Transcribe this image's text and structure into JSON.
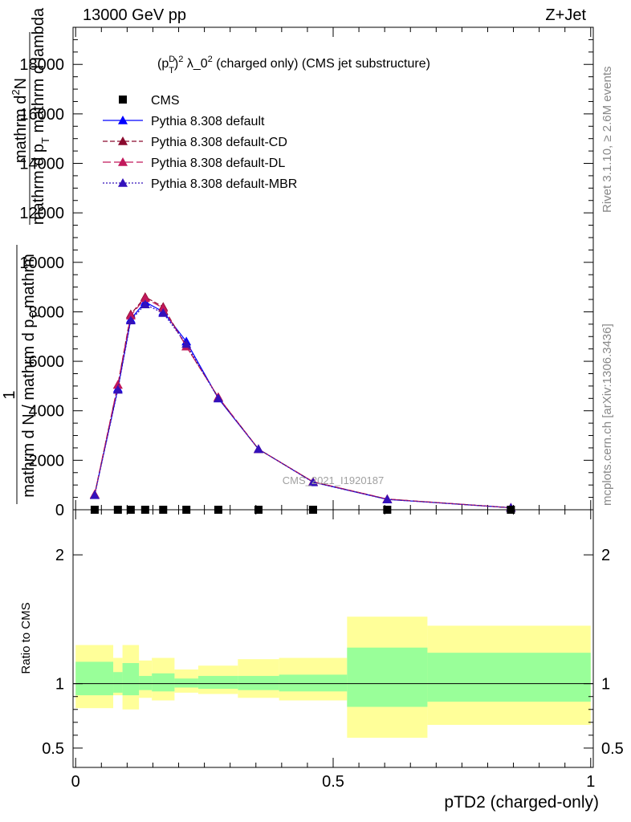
{
  "header": {
    "left": "13000 GeV pp",
    "right": "Z+Jet"
  },
  "side_labels": {
    "rivet": "Rivet 3.1.10, ≥ 2.6M events",
    "source": "mcplots.cern.ch [arXiv:1306.3436]"
  },
  "watermark": "CMS_2021_I1920187",
  "chart_data": [
    {
      "type": "line",
      "panel": "main",
      "title_parts": {
        "base": "(p",
        "sup1": "D",
        "sub1": "T",
        "mid": ")",
        "sup2": "2",
        "tail1": " λ_0",
        "sup3": "2",
        "tail2": " (charged only) (CMS jet substructure)"
      },
      "ylabel": {
        "numerator_prefix": "1",
        "frac_top": "mathrm d",
        "frac_top_sup": "2",
        "frac_top_end": "N",
        "frac_bottom": "mathrm d p",
        "frac_bottom_sub": "T",
        "frac_bottom_end": " mathrm d lambda",
        "outer": "mathrm d N / mathrm d p",
        "outer_sub": "T",
        "outer_end": " mathrm"
      },
      "ylim": [
        0,
        19500
      ],
      "yticks": [
        0,
        2000,
        4000,
        6000,
        8000,
        10000,
        12000,
        14000,
        16000,
        18000
      ],
      "ytick_labels": [
        "0",
        "2000",
        "4000",
        "6000",
        "8000",
        "10000",
        "12000",
        "14000",
        "16000",
        "18000"
      ],
      "legend": [
        {
          "name": "CMS",
          "color": "#000000",
          "marker": "square",
          "dash": ""
        },
        {
          "name": "Pythia 8.308 default",
          "color": "#0000ff",
          "marker": "triangle",
          "dash": ""
        },
        {
          "name": "Pythia 8.308 default-CD",
          "color": "#8b0a2e",
          "marker": "triangle",
          "dash": "6,3"
        },
        {
          "name": "Pythia 8.308 default-DL",
          "color": "#c2185b",
          "marker": "triangle",
          "dash": "10,4"
        },
        {
          "name": "Pythia 8.308 default-MBR",
          "color": "#3311bb",
          "marker": "triangle",
          "dash": "2,2"
        }
      ],
      "data_x": [
        0.037,
        0.082,
        0.107,
        0.135,
        0.17,
        0.215,
        0.277,
        0.355,
        0.461,
        0.605,
        0.845
      ],
      "data_y": [
        0,
        0,
        0,
        0,
        0,
        0,
        0,
        0,
        0,
        0,
        0
      ],
      "series": [
        {
          "name": "Pythia 8.308 default",
          "values": [
            600,
            4900,
            7700,
            8400,
            8000,
            6800,
            4500,
            2450,
            1120,
            420,
            80
          ]
        },
        {
          "name": "Pythia 8.308 default-CD",
          "values": [
            620,
            5050,
            7900,
            8600,
            8200,
            6600,
            4550,
            2450,
            1130,
            430,
            80
          ]
        },
        {
          "name": "Pythia 8.308 default-DL",
          "values": [
            620,
            5050,
            7850,
            8550,
            8150,
            6600,
            4550,
            2450,
            1130,
            430,
            80
          ]
        },
        {
          "name": "Pythia 8.308 default-MBR",
          "values": [
            590,
            4850,
            7650,
            8300,
            7950,
            6700,
            4500,
            2450,
            1110,
            420,
            80
          ]
        }
      ]
    },
    {
      "type": "area",
      "panel": "ratio",
      "ylabel": "Ratio to CMS",
      "xlabel": "pTD2 (charged-only)",
      "xlim": [
        -0.005,
        1.005
      ],
      "xticks": [
        0,
        0.5,
        1
      ],
      "xtick_labels": [
        "0",
        "0.5",
        "1"
      ],
      "ylim": [
        0.35,
        2.35
      ],
      "yticks": [
        0.5,
        1,
        2
      ],
      "ytick_labels": [
        "0.5",
        "1",
        "2"
      ],
      "bins": [
        {
          "lo": 0.0,
          "hi": 0.073,
          "stat_lo": 0.91,
          "stat_hi": 1.17,
          "tot_lo": 0.81,
          "tot_hi": 1.3
        },
        {
          "lo": 0.073,
          "hi": 0.091,
          "stat_lo": 0.93,
          "stat_hi": 1.09,
          "tot_lo": 0.91,
          "tot_hi": 1.2
        },
        {
          "lo": 0.091,
          "hi": 0.123,
          "stat_lo": 0.91,
          "stat_hi": 1.16,
          "tot_lo": 0.8,
          "tot_hi": 1.3
        },
        {
          "lo": 0.123,
          "hi": 0.148,
          "stat_lo": 0.95,
          "stat_hi": 1.06,
          "tot_lo": 0.89,
          "tot_hi": 1.18
        },
        {
          "lo": 0.148,
          "hi": 0.192,
          "stat_lo": 0.94,
          "stat_hi": 1.08,
          "tot_lo": 0.87,
          "tot_hi": 1.2
        },
        {
          "lo": 0.192,
          "hi": 0.238,
          "stat_lo": 0.97,
          "stat_hi": 1.04,
          "tot_lo": 0.93,
          "tot_hi": 1.11
        },
        {
          "lo": 0.238,
          "hi": 0.315,
          "stat_lo": 0.96,
          "stat_hi": 1.06,
          "tot_lo": 0.92,
          "tot_hi": 1.14
        },
        {
          "lo": 0.315,
          "hi": 0.395,
          "stat_lo": 0.95,
          "stat_hi": 1.06,
          "tot_lo": 0.89,
          "tot_hi": 1.19
        },
        {
          "lo": 0.395,
          "hi": 0.527,
          "stat_lo": 0.94,
          "stat_hi": 1.07,
          "tot_lo": 0.87,
          "tot_hi": 1.2
        },
        {
          "lo": 0.527,
          "hi": 0.683,
          "stat_lo": 0.82,
          "stat_hi": 1.28,
          "tot_lo": 0.58,
          "tot_hi": 1.52
        },
        {
          "lo": 0.683,
          "hi": 1.0,
          "stat_lo": 0.86,
          "stat_hi": 1.24,
          "tot_lo": 0.68,
          "tot_hi": 1.45
        }
      ],
      "colors": {
        "stat": "#99ff99",
        "total": "#ffff99"
      }
    }
  ]
}
